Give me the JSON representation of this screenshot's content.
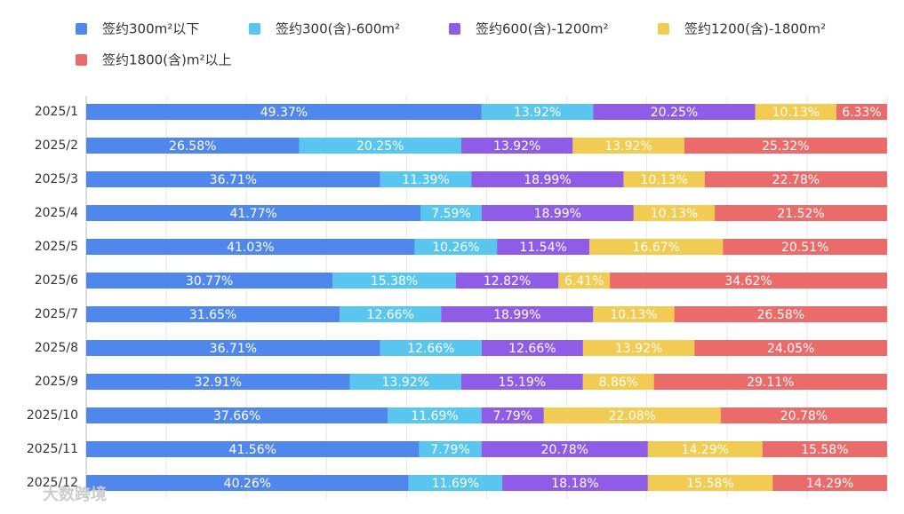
{
  "chart_data": {
    "type": "stacked-bar-horizontal",
    "categories": [
      "2025/1",
      "2025/2",
      "2025/3",
      "2025/4",
      "2025/5",
      "2025/6",
      "2025/7",
      "2025/8",
      "2025/9",
      "2025/10",
      "2025/11",
      "2025/12"
    ],
    "xlim": [
      0,
      100
    ],
    "xticks": [
      0,
      10,
      20,
      30,
      40,
      50,
      60,
      70,
      80,
      90,
      100
    ],
    "grid": true,
    "series": [
      {
        "name": "签约300m²以下",
        "color": "#5087ec",
        "values": [
          49.37,
          26.58,
          36.71,
          41.77,
          41.03,
          30.77,
          31.65,
          36.71,
          32.91,
          37.66,
          41.56,
          40.26
        ],
        "value_labels": [
          "49.37%",
          "26.58%",
          "36.71%",
          "41.77%",
          "41.03%",
          "30.77%",
          "31.65%",
          "36.71%",
          "32.91%",
          "37.66%",
          "41.56%",
          "40.26%"
        ]
      },
      {
        "name": "签约300(含)-600m²",
        "color": "#58c6ef",
        "values": [
          13.92,
          20.25,
          11.39,
          7.59,
          10.26,
          15.38,
          12.66,
          12.66,
          13.92,
          11.69,
          7.79,
          11.69
        ],
        "value_labels": [
          "13.92%",
          "20.25%",
          "11.39%",
          "7.59%",
          "10.26%",
          "15.38%",
          "12.66%",
          "12.66%",
          "13.92%",
          "11.69%",
          "7.79%",
          "11.69%"
        ]
      },
      {
        "name": "签约600(含)-1200m²",
        "color": "#8e5ce6",
        "values": [
          20.25,
          13.92,
          18.99,
          18.99,
          11.54,
          12.82,
          18.99,
          12.66,
          15.19,
          7.79,
          20.78,
          18.18
        ],
        "value_labels": [
          "20.25%",
          "13.92%",
          "18.99%",
          "18.99%",
          "11.54%",
          "12.82%",
          "18.99%",
          "12.66%",
          "15.19%",
          "7.79%",
          "20.78%",
          "18.18%"
        ]
      },
      {
        "name": "签约1200(含)-1800m²",
        "color": "#f1cb52",
        "values": [
          10.13,
          13.92,
          10.13,
          10.13,
          16.67,
          6.41,
          10.13,
          13.92,
          8.86,
          22.08,
          14.29,
          15.58
        ],
        "value_labels": [
          "10.13%",
          "13.92%",
          "10.13%",
          "10.13%",
          "16.67%",
          "6.41%",
          "10.13%",
          "13.92%",
          "8.86%",
          "22.08%",
          "14.29%",
          "15.58%"
        ]
      },
      {
        "name": "签约1800(含)m²以上",
        "color": "#ea6b69",
        "values": [
          6.33,
          25.32,
          22.78,
          21.52,
          20.51,
          34.62,
          26.58,
          24.05,
          29.11,
          20.78,
          15.58,
          14.29
        ],
        "value_labels": [
          "6.33%",
          "25.32%",
          "22.78%",
          "21.52%",
          "20.51%",
          "34.62%",
          "26.58%",
          "24.05%",
          "29.11%",
          "20.78%",
          "15.58%",
          "14.29%"
        ]
      }
    ],
    "watermark": "大数跨境"
  }
}
